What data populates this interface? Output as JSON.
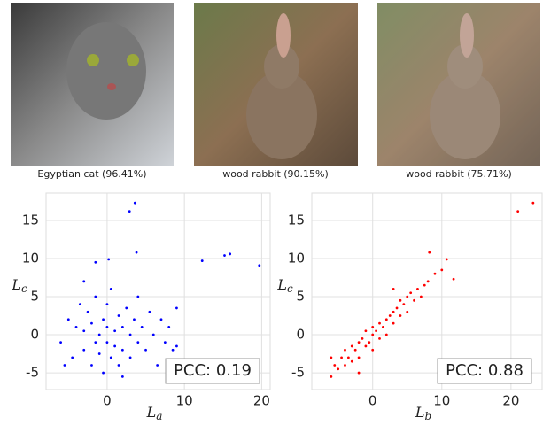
{
  "images": [
    {
      "caption": "Egyptian cat (96.41%)"
    },
    {
      "caption": "wood rabbit (90.15%)"
    },
    {
      "caption": "wood rabbit (75.71%)"
    }
  ],
  "chart_data": [
    {
      "type": "scatter",
      "xlabel": "L",
      "xlabel_sub": "a",
      "ylabel": "L",
      "ylabel_sub": "c",
      "annotation": "PCC: 0.19",
      "xlim": [
        -7.9,
        21.1
      ],
      "ylim": [
        -7.2,
        18.6
      ],
      "xticks": [
        0,
        10,
        20
      ],
      "yticks": [
        -5,
        0,
        5,
        10,
        15
      ],
      "grid": true,
      "series": [
        {
          "color": "#0000ff",
          "x": [
            3.6,
            2.9,
            3.8,
            12.3,
            15.2,
            15.9,
            19.7,
            0.2,
            -1.5,
            -6,
            -5,
            -4.5,
            -4,
            -3.5,
            -3,
            -3,
            -2.5,
            -2,
            -2,
            -1.5,
            -1.5,
            -1,
            -1,
            -0.5,
            -0.5,
            0,
            0,
            0,
            0.5,
            0.5,
            1,
            1,
            1.5,
            1.5,
            2,
            2,
            2.5,
            3,
            3,
            3.5,
            4,
            4,
            4.5,
            5,
            5.5,
            6,
            6.5,
            7,
            7.5,
            8,
            8.5,
            9,
            -5.5,
            -3,
            2,
            9
          ],
          "values": [
            17.3,
            16.2,
            10.8,
            9.7,
            10.4,
            10.6,
            9.1,
            9.9,
            9.5,
            -1,
            2,
            -3,
            1,
            4,
            -2,
            0.5,
            3,
            -4,
            1.5,
            -1,
            5,
            0,
            -2.5,
            2,
            -5,
            1,
            -1,
            4,
            -3,
            6,
            0.5,
            -1.5,
            2.5,
            -4,
            1,
            -2,
            3.5,
            0,
            -3,
            2,
            -1,
            5,
            1,
            -2,
            3,
            0,
            -4,
            2,
            -1,
            1,
            -2,
            3.5,
            -4,
            7,
            -5.5,
            -1.5
          ]
        }
      ]
    },
    {
      "type": "scatter",
      "xlabel": "L",
      "xlabel_sub": "b",
      "ylabel": "L",
      "ylabel_sub": "c",
      "annotation": "PCC: 0.88",
      "xlim": [
        -8.8,
        24.5
      ],
      "ylim": [
        -7.2,
        18.6
      ],
      "xticks": [
        0,
        10,
        20
      ],
      "yticks": [
        -5,
        0,
        5,
        10,
        15
      ],
      "grid": true,
      "series": [
        {
          "color": "#ff0000",
          "x": [
            21,
            23.2,
            8.2,
            10.7,
            11.7,
            -6,
            -5.5,
            -5,
            -4.5,
            -4,
            -4,
            -3.5,
            -3,
            -3,
            -2.5,
            -2,
            -2,
            -1.5,
            -1,
            -1,
            -0.5,
            0,
            0,
            0,
            0.5,
            1,
            1,
            1.5,
            2,
            2,
            2.5,
            3,
            3,
            3.5,
            4,
            4,
            4.5,
            5,
            5,
            5.5,
            6,
            6.5,
            7,
            7.5,
            8,
            9,
            10,
            -6,
            -2,
            3
          ],
          "values": [
            16.2,
            17.3,
            10.8,
            9.9,
            7.3,
            -5.5,
            -4,
            -4.5,
            -3,
            -4,
            -2,
            -3,
            -1.5,
            -3.5,
            -2,
            -1,
            -3,
            -0.5,
            -1.5,
            0.5,
            -1,
            0,
            1,
            -2,
            0.5,
            1.5,
            -0.5,
            1,
            2,
            0,
            2.5,
            3,
            1.5,
            3.5,
            2.5,
            4.5,
            4,
            5,
            3,
            5.5,
            4.5,
            6,
            5,
            6.5,
            7,
            8,
            8.5,
            -3,
            -5,
            6
          ]
        }
      ]
    }
  ]
}
